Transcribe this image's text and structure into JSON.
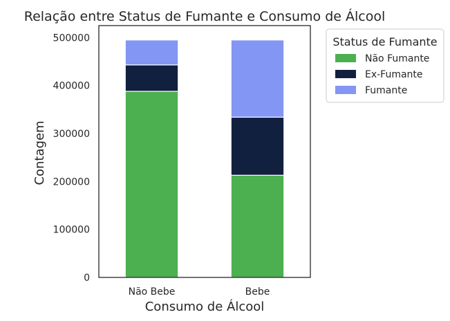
{
  "chart_data": {
    "type": "bar",
    "stacked": true,
    "title": "Relação entre Status de Fumante e Consumo de Álcool",
    "xlabel": "Consumo de Álcool",
    "ylabel": "Contagem",
    "categories": [
      "Não Bebe",
      "Bebe"
    ],
    "series": [
      {
        "name": "Não Fumante",
        "color": "#4caf50",
        "values": [
          388000,
          213000
        ]
      },
      {
        "name": "Ex-Fumante",
        "color": "#12203f",
        "values": [
          55000,
          121000
        ]
      },
      {
        "name": "Fumante",
        "color": "#8396f3",
        "values": [
          52000,
          161000
        ]
      }
    ],
    "ylim": [
      0,
      525000
    ],
    "yticks": [
      0,
      100000,
      200000,
      300000,
      400000,
      500000
    ],
    "ytick_labels": [
      "0",
      "100000",
      "200000",
      "300000",
      "400000",
      "500000"
    ],
    "grid": false,
    "legend": {
      "title": "Status de Fumante",
      "position": "outside-top-right"
    }
  }
}
